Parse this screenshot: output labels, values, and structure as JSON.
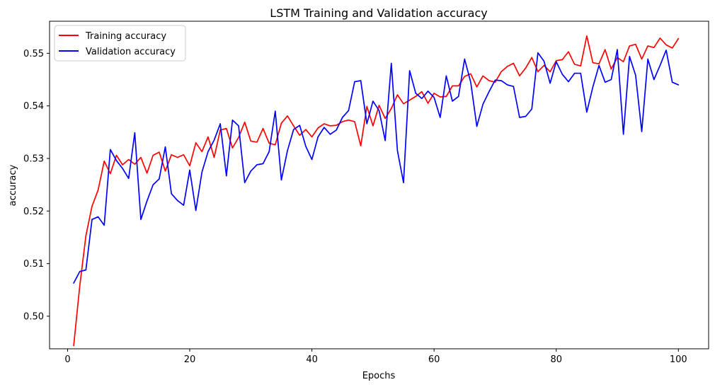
{
  "chart_data": {
    "type": "line",
    "title": "LSTM Training and Validation accuracy",
    "xlabel": "Epochs",
    "ylabel": "accuracy",
    "xlim": [
      -2.95,
      104.95
    ],
    "ylim": [
      0.4938,
      0.5561
    ],
    "xticks": [
      0,
      20,
      40,
      60,
      80,
      100
    ],
    "xtick_labels": [
      "0",
      "20",
      "40",
      "60",
      "80",
      "100"
    ],
    "yticks": [
      0.5,
      0.51,
      0.52,
      0.53,
      0.54,
      0.55
    ],
    "ytick_labels": [
      "0.50",
      "0.51",
      "0.52",
      "0.53",
      "0.54",
      "0.55"
    ],
    "grid": false,
    "legend_position": "upper-left",
    "x": [
      1,
      2,
      3,
      4,
      5,
      6,
      7,
      8,
      9,
      10,
      11,
      12,
      13,
      14,
      15,
      16,
      17,
      18,
      19,
      20,
      21,
      22,
      23,
      24,
      25,
      26,
      27,
      28,
      29,
      30,
      31,
      32,
      33,
      34,
      35,
      36,
      37,
      38,
      39,
      40,
      41,
      42,
      43,
      44,
      45,
      46,
      47,
      48,
      49,
      50,
      51,
      52,
      53,
      54,
      55,
      56,
      57,
      58,
      59,
      60,
      61,
      62,
      63,
      64,
      65,
      66,
      67,
      68,
      69,
      70,
      71,
      72,
      73,
      74,
      75,
      76,
      77,
      78,
      79,
      80,
      81,
      82,
      83,
      84,
      85,
      86,
      87,
      88,
      89,
      90,
      91,
      92,
      93,
      94,
      95,
      96,
      97,
      98,
      99,
      100
    ],
    "series": [
      {
        "name": "Training accuracy",
        "color": "#ff0000",
        "values": [
          0.4944,
          0.5058,
          0.5153,
          0.5209,
          0.524,
          0.5295,
          0.5271,
          0.5306,
          0.5288,
          0.5298,
          0.5289,
          0.5302,
          0.5272,
          0.5306,
          0.5312,
          0.5276,
          0.5307,
          0.5302,
          0.5307,
          0.5286,
          0.533,
          0.5313,
          0.5341,
          0.5302,
          0.5354,
          0.5357,
          0.532,
          0.534,
          0.5369,
          0.5333,
          0.5331,
          0.5357,
          0.5329,
          0.5326,
          0.5367,
          0.5381,
          0.5362,
          0.5344,
          0.5355,
          0.5341,
          0.5358,
          0.5366,
          0.5362,
          0.5363,
          0.537,
          0.5373,
          0.537,
          0.5324,
          0.5399,
          0.5362,
          0.5401,
          0.5376,
          0.5395,
          0.5421,
          0.5404,
          0.5411,
          0.5418,
          0.5427,
          0.5405,
          0.5424,
          0.5417,
          0.5418,
          0.5438,
          0.5438,
          0.5456,
          0.5461,
          0.5436,
          0.5457,
          0.5448,
          0.5445,
          0.5465,
          0.5475,
          0.5481,
          0.5457,
          0.5472,
          0.5492,
          0.5465,
          0.5477,
          0.5465,
          0.5486,
          0.5488,
          0.5503,
          0.5479,
          0.5476,
          0.5533,
          0.5482,
          0.548,
          0.5507,
          0.547,
          0.5492,
          0.5484,
          0.5514,
          0.5517,
          0.5489,
          0.5514,
          0.5511,
          0.5529,
          0.5516,
          0.551,
          0.5528
        ]
      },
      {
        "name": "Validation accuracy",
        "color": "#0000ff",
        "values": [
          0.5063,
          0.5085,
          0.5088,
          0.5184,
          0.5189,
          0.5173,
          0.5317,
          0.5296,
          0.5281,
          0.5262,
          0.5349,
          0.5184,
          0.5219,
          0.525,
          0.5261,
          0.5322,
          0.5233,
          0.522,
          0.5211,
          0.5278,
          0.5201,
          0.5274,
          0.5313,
          0.5335,
          0.5366,
          0.5267,
          0.5373,
          0.5362,
          0.5254,
          0.5276,
          0.5288,
          0.529,
          0.5313,
          0.539,
          0.5259,
          0.5315,
          0.5355,
          0.5363,
          0.5323,
          0.5298,
          0.5341,
          0.5359,
          0.5346,
          0.5354,
          0.5378,
          0.5391,
          0.5446,
          0.5448,
          0.5366,
          0.5409,
          0.5391,
          0.5334,
          0.5481,
          0.5315,
          0.5254,
          0.5467,
          0.5424,
          0.5414,
          0.5428,
          0.5416,
          0.5378,
          0.5457,
          0.5409,
          0.5418,
          0.5489,
          0.5445,
          0.5361,
          0.5403,
          0.5427,
          0.5449,
          0.5448,
          0.544,
          0.5437,
          0.5378,
          0.538,
          0.5394,
          0.5501,
          0.5485,
          0.5443,
          0.5484,
          0.546,
          0.5446,
          0.5462,
          0.5462,
          0.5388,
          0.5436,
          0.5477,
          0.5445,
          0.545,
          0.5507,
          0.5346,
          0.5494,
          0.5458,
          0.5351,
          0.5489,
          0.545,
          0.5477,
          0.5506,
          0.5445,
          0.544
        ]
      }
    ]
  }
}
